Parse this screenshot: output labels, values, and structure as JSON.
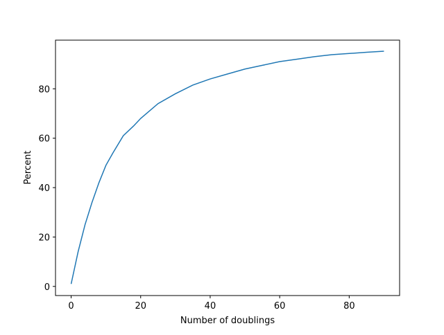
{
  "chart_data": {
    "type": "line",
    "x_label": "Number of doublings",
    "y_label": "Percent",
    "x": [
      0,
      2,
      4,
      6,
      8,
      10,
      12,
      15,
      18,
      20,
      25,
      30,
      35,
      40,
      45,
      50,
      55,
      60,
      65,
      70,
      75,
      80,
      85,
      90
    ],
    "series": [
      {
        "color": "#1f77b4",
        "values": [
          1,
          14,
          25,
          34,
          42,
          49,
          54,
          61,
          65,
          68,
          74,
          78,
          81.5,
          84,
          86,
          88,
          89.5,
          91,
          92,
          93,
          93.8,
          94.3,
          94.8,
          95.2
        ]
      }
    ],
    "xlim": [
      -4.5,
      94.5
    ],
    "xticks": [
      0,
      20,
      40,
      60,
      80
    ],
    "ylim": [
      -3.7,
      99.7
    ],
    "yticks": [
      0,
      20,
      40,
      60,
      80
    ],
    "grid": false
  }
}
